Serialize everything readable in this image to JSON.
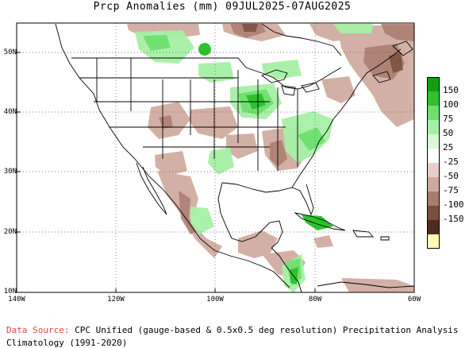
{
  "title": "Prcp Anomalies (mm) 09JUL2025-07AUG2025",
  "lat_labels": [
    "50N",
    "40N",
    "30N",
    "20N",
    "10N"
  ],
  "lon_labels": [
    "140W",
    "120W",
    "100W",
    "80W",
    "60W"
  ],
  "legend": {
    "labels": [
      "150",
      "100",
      "75",
      "50",
      "25",
      "-25",
      "-50",
      "-75",
      "-100",
      "-150"
    ],
    "colors": [
      "#12a012",
      "#2ec22e",
      "#6ee06e",
      "#a6f0a6",
      "#d8f8d8",
      "#ffffff",
      "#e6cfc8",
      "#cfa89c",
      "#a97c6e",
      "#7a4f40",
      "#4f2c20",
      "#fefab4"
    ]
  },
  "footer": {
    "source_label": "Data Source:",
    "source_text": "CPC Unified (gauge-based & 0.5x0.5 deg resolution) Precipitation Analysis",
    "climatology_text": "Climatology (1991-2020)"
  }
}
